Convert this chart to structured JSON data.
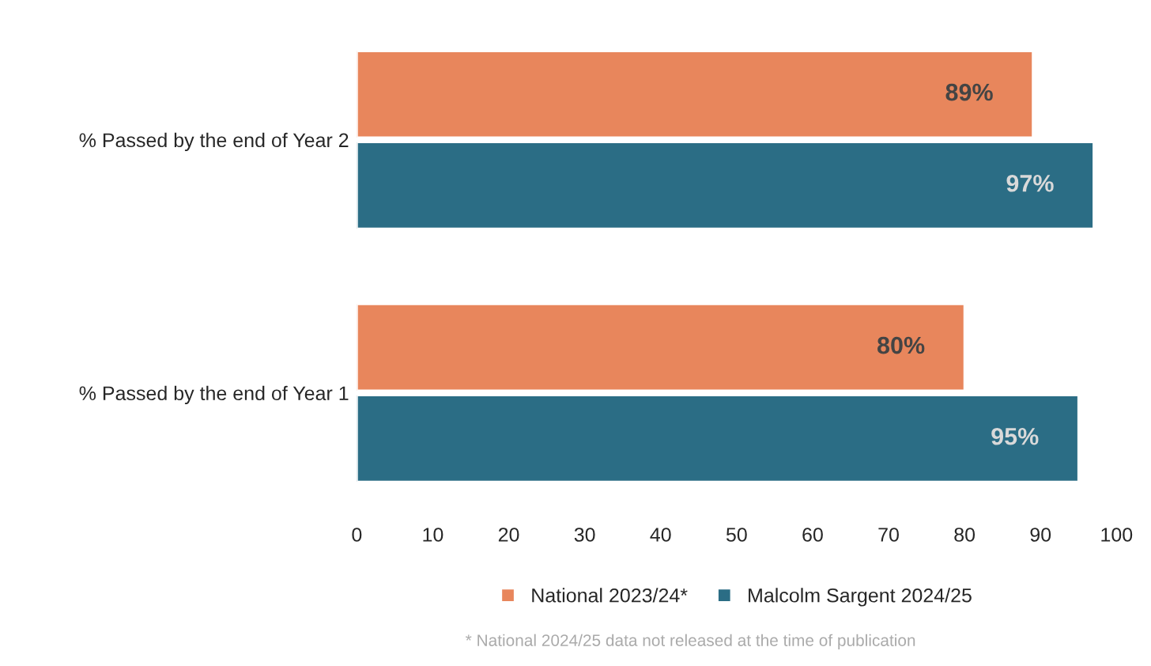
{
  "chart_data": {
    "type": "bar",
    "orientation": "horizontal",
    "categories": [
      "% Passed by the end of Year 2",
      "% Passed by the end of Year 1"
    ],
    "series": [
      {
        "name": "National 2023/24*",
        "color": "#e8865c",
        "values": [
          89,
          80
        ],
        "value_labels": [
          "89%",
          "80%"
        ]
      },
      {
        "name": "Malcolm Sargent 2024/25",
        "color": "#2b6d85",
        "values": [
          97,
          95
        ],
        "value_labels": [
          "97%",
          "95%"
        ]
      }
    ],
    "xlim": [
      0,
      100
    ],
    "xticks": [
      0,
      10,
      20,
      30,
      40,
      50,
      60,
      70,
      80,
      90,
      100
    ],
    "grid": false,
    "legend": "bottom",
    "annotations": [
      "* National 2024/25 data not released at the time of publication"
    ]
  }
}
